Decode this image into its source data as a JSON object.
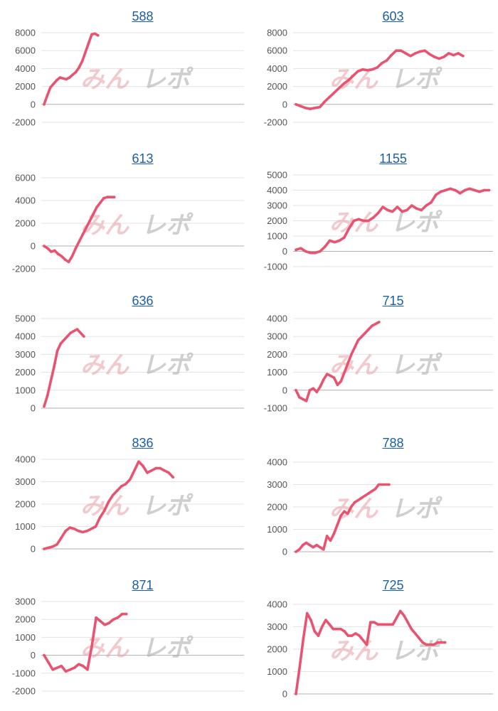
{
  "colors": {
    "line": "#e8546f",
    "grid": "#e3e3e3",
    "axis": "#b0b0b0",
    "title": "#1a5fa3",
    "tick": "#555555"
  },
  "watermark": {
    "text": "みんレポ",
    "icon": "minrepo-watermark-logo"
  },
  "chart_data": [
    {
      "type": "line",
      "title": "588",
      "ylim": [
        -2000,
        8000
      ],
      "yticks": [
        8000,
        6000,
        4000,
        2000,
        0,
        -2000
      ],
      "x": [
        0,
        1,
        2,
        3,
        4,
        5,
        6,
        7,
        8,
        9,
        10,
        11,
        12,
        13,
        14,
        15,
        16,
        17
      ],
      "values": [
        0,
        1000,
        1900,
        2300,
        2700,
        3000,
        2900,
        2800,
        3000,
        3300,
        3600,
        4100,
        4800,
        5800,
        6800,
        7800,
        7900,
        7700
      ]
    },
    {
      "type": "line",
      "title": "603",
      "ylim": [
        -2000,
        8000
      ],
      "yticks": [
        8000,
        6000,
        4000,
        2000,
        0,
        -2000
      ],
      "x": [
        0,
        1,
        2,
        3,
        4,
        5,
        6,
        7,
        8,
        9,
        10,
        11,
        12,
        13,
        14,
        15,
        16,
        17,
        18,
        19,
        20,
        21,
        22,
        23,
        24,
        25,
        26,
        27,
        28,
        29,
        30,
        31,
        32,
        33,
        34,
        35
      ],
      "values": [
        0,
        -200,
        -400,
        -500,
        -400,
        -300,
        300,
        800,
        1300,
        1800,
        2300,
        2700,
        3200,
        3700,
        3900,
        3800,
        3900,
        4100,
        4600,
        4900,
        5500,
        6000,
        6000,
        5700,
        5400,
        5700,
        5900,
        6000,
        5600,
        5300,
        5100,
        5300,
        5700,
        5500,
        5700,
        5400
      ]
    },
    {
      "type": "line",
      "title": "613",
      "ylim": [
        -2000,
        6000
      ],
      "yticks": [
        6000,
        4000,
        2000,
        0,
        -2000
      ],
      "x": [
        0,
        1,
        2,
        3,
        4,
        5,
        6,
        7,
        8,
        9,
        10,
        11,
        12,
        13,
        14,
        15,
        16,
        17,
        18,
        19,
        20
      ],
      "values": [
        0,
        -200,
        -500,
        -400,
        -700,
        -900,
        -1200,
        -1400,
        -900,
        -200,
        400,
        1000,
        1600,
        2200,
        2800,
        3400,
        3800,
        4200,
        4300,
        4300,
        4300
      ]
    },
    {
      "type": "line",
      "title": "1155",
      "ylim": [
        -1000,
        5000
      ],
      "yticks": [
        5000,
        4000,
        3000,
        2000,
        1000,
        0,
        -1000
      ],
      "x": [
        0,
        1,
        2,
        3,
        4,
        5,
        6,
        7,
        8,
        9,
        10,
        11,
        12,
        13,
        14,
        15,
        16,
        17,
        18,
        19,
        20,
        21,
        22,
        23,
        24,
        25,
        26,
        27,
        28,
        29,
        30,
        31,
        32,
        33,
        34,
        35,
        36,
        37,
        38,
        39,
        40
      ],
      "values": [
        100,
        200,
        0,
        -100,
        -100,
        0,
        300,
        700,
        600,
        700,
        900,
        1500,
        2000,
        2100,
        2000,
        2000,
        2200,
        2500,
        2900,
        2700,
        2600,
        2900,
        2600,
        2700,
        3000,
        2800,
        2700,
        3000,
        3200,
        3700,
        3900,
        4000,
        4100,
        4000,
        3800,
        4000,
        4100,
        4000,
        3900,
        4000,
        4000
      ]
    },
    {
      "type": "line",
      "title": "636",
      "ylim": [
        0,
        5000
      ],
      "yticks": [
        5000,
        4000,
        3000,
        2000,
        1000,
        0
      ],
      "x": [
        0,
        1,
        2,
        3,
        4,
        5,
        6,
        7,
        8,
        9,
        10,
        11,
        12
      ],
      "values": [
        100,
        700,
        1500,
        2300,
        3200,
        3600,
        3800,
        4000,
        4200,
        4300,
        4400,
        4200,
        4000
      ]
    },
    {
      "type": "line",
      "title": "715",
      "ylim": [
        -1000,
        4000
      ],
      "yticks": [
        4000,
        3000,
        2000,
        1000,
        0,
        -1000
      ],
      "x": [
        0,
        1,
        2,
        3,
        4,
        5,
        6,
        7,
        8,
        9,
        10,
        11,
        12,
        13,
        14,
        15,
        16,
        17,
        18,
        19,
        20,
        21,
        22,
        23,
        24
      ],
      "values": [
        0,
        -400,
        -500,
        -600,
        0,
        100,
        -100,
        200,
        600,
        900,
        800,
        700,
        300,
        500,
        1000,
        1500,
        2000,
        2400,
        2800,
        3000,
        3200,
        3400,
        3600,
        3700,
        3800
      ]
    },
    {
      "type": "line",
      "title": "836",
      "ylim": [
        0,
        4000
      ],
      "yticks": [
        4000,
        3000,
        2000,
        1000,
        0
      ],
      "x": [
        0,
        1,
        2,
        3,
        4,
        5,
        6,
        7,
        8,
        9,
        10,
        11,
        12,
        13,
        14,
        15,
        16,
        17,
        18,
        19,
        20,
        21,
        22,
        23,
        24,
        25,
        26,
        27,
        28,
        29,
        30
      ],
      "values": [
        0,
        50,
        100,
        200,
        500,
        800,
        950,
        900,
        800,
        750,
        800,
        900,
        1000,
        1400,
        1700,
        2100,
        2400,
        2600,
        2800,
        2900,
        3100,
        3500,
        3900,
        3700,
        3400,
        3500,
        3600,
        3600,
        3500,
        3400,
        3200
      ]
    },
    {
      "type": "line",
      "title": "788",
      "ylim": [
        0,
        4000
      ],
      "yticks": [
        4000,
        3000,
        2000,
        1000,
        0
      ],
      "x": [
        0,
        1,
        2,
        3,
        4,
        5,
        6,
        7,
        8,
        9,
        10,
        11,
        12,
        13,
        14,
        15,
        16,
        17,
        18,
        19,
        20,
        21,
        22,
        23,
        24,
        25,
        26,
        27
      ],
      "values": [
        0,
        100,
        300,
        400,
        300,
        200,
        300,
        200,
        100,
        700,
        500,
        800,
        1200,
        1600,
        1800,
        1700,
        2000,
        2200,
        2300,
        2400,
        2500,
        2600,
        2700,
        2800,
        3000,
        3000,
        3000,
        3000
      ]
    },
    {
      "type": "line",
      "title": "871",
      "ylim": [
        -2000,
        3000
      ],
      "yticks": [
        3000,
        2000,
        1000,
        0,
        -1000,
        -2000
      ],
      "x": [
        0,
        1,
        2,
        3,
        4,
        5,
        6,
        7,
        8,
        9,
        10,
        11,
        12,
        13,
        14,
        15,
        16,
        17,
        18,
        19
      ],
      "values": [
        0,
        -400,
        -800,
        -700,
        -600,
        -900,
        -800,
        -700,
        -500,
        -600,
        -800,
        500,
        2100,
        1900,
        1700,
        1800,
        2000,
        2100,
        2300,
        2300
      ]
    },
    {
      "type": "line",
      "title": "725",
      "ylim": [
        0,
        4000
      ],
      "yticks": [
        4000,
        3000,
        2000,
        1000,
        0
      ],
      "x": [
        0,
        1,
        2,
        3,
        4,
        5,
        6,
        7,
        8,
        9,
        10,
        11,
        12,
        13,
        14,
        15,
        16,
        17,
        18,
        19,
        20,
        21,
        22,
        23,
        24,
        25,
        26,
        27,
        28,
        29,
        30,
        31,
        32,
        33,
        34,
        35,
        36,
        37,
        38,
        39,
        40
      ],
      "values": [
        0,
        1200,
        2500,
        3600,
        3300,
        2800,
        2600,
        3000,
        3300,
        3100,
        2900,
        2900,
        2900,
        2800,
        2600,
        2600,
        2700,
        2600,
        2400,
        2200,
        3200,
        3200,
        3100,
        3100,
        3100,
        3100,
        3100,
        3400,
        3700,
        3500,
        3200,
        2900,
        2700,
        2500,
        2300,
        2200,
        2200,
        2200,
        2300,
        2300,
        2300
      ]
    }
  ]
}
